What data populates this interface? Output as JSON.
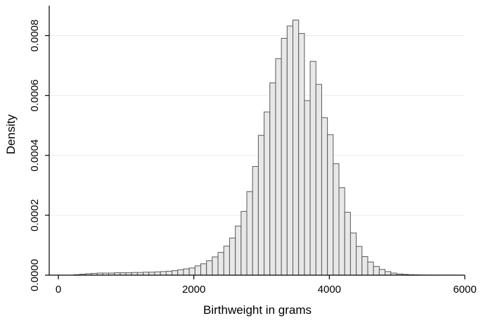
{
  "chart_data": {
    "type": "bar",
    "subtype": "histogram",
    "xlabel": "Birthweight in grams",
    "ylabel": "Density",
    "xlim": [
      0,
      6000
    ],
    "ylim": [
      0,
      0.0009
    ],
    "xticks": [
      0,
      2000,
      4000,
      6000
    ],
    "xtick_labels": [
      "0",
      "2000",
      "4000",
      "6000"
    ],
    "yticks": [
      0,
      0.0002,
      0.0004,
      0.0006,
      0.0008
    ],
    "ytick_labels": [
      "0.0000",
      "0.0002",
      "0.0004",
      "0.0006",
      "0.0008"
    ],
    "grid": true,
    "bar_color": "#e8e8e8",
    "bar_edge_color": "#5a5a5a",
    "bin_width": 85,
    "bin_start": 232,
    "values": [
      1.5e-06,
      3e-06,
      5e-06,
      6e-06,
      7e-06,
      7e-06,
      7e-06,
      8e-06,
      8e-06,
      8e-06,
      9e-06,
      9e-06,
      1e-05,
      1e-05,
      1.1e-05,
      1.2e-05,
      1.3e-05,
      1.5e-05,
      1.8e-05,
      2.1e-05,
      2.4e-05,
      3.1e-05,
      3.8e-05,
      4.8e-05,
      6.1e-05,
      7.6e-05,
      9.7e-05,
      0.000124,
      0.000164,
      0.000213,
      0.000279,
      0.000363,
      0.000467,
      0.000545,
      0.000642,
      0.000723,
      0.000791,
      0.000832,
      0.000852,
      0.000807,
      0.000583,
      0.000714,
      0.000637,
      0.000526,
      0.000469,
      0.000372,
      0.000292,
      0.00021,
      0.000141,
      9.6e-05,
      6.2e-05,
      4.4e-05,
      2.9e-05,
      1.9e-05,
      1.2e-05,
      7e-06,
      4e-06,
      2.5e-06,
      1.5e-06,
      8e-07,
      5e-07,
      3e-07,
      2e-07,
      1e-07,
      1e-07,
      1e-07
    ]
  }
}
